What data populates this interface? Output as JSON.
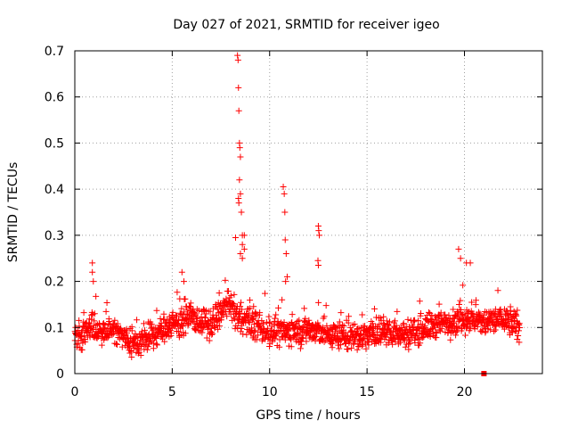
{
  "chart_data": {
    "type": "scatter",
    "title": "Day 027 of 2021, SRMTID for receiver igeo",
    "xlabel": "GPS time / hours",
    "ylabel": "SRMTID / TECUs",
    "xlim": [
      0,
      24
    ],
    "ylim": [
      0,
      0.7
    ],
    "xticks": [
      0,
      5,
      10,
      15,
      20
    ],
    "xtick_labels": [
      "0",
      "5",
      "10",
      "15",
      "20"
    ],
    "yticks": [
      0,
      0.1,
      0.2,
      0.3,
      0.4,
      0.5,
      0.6,
      0.7
    ],
    "ytick_labels": [
      "0",
      "0.1",
      "0.2",
      "0.3",
      "0.4",
      "0.5",
      "0.6",
      "0.7"
    ],
    "grid": true,
    "marker": "+",
    "color": "#ff0000",
    "series": [
      {
        "name": "SRMTID",
        "background": {
          "x_start": 0.0,
          "x_end": 22.85,
          "count": 1600,
          "base_profile": [
            [
              0.0,
              0.085
            ],
            [
              1.0,
              0.095
            ],
            [
              2.0,
              0.095
            ],
            [
              3.0,
              0.065
            ],
            [
              4.0,
              0.08
            ],
            [
              5.0,
              0.11
            ],
            [
              6.0,
              0.12
            ],
            [
              7.0,
              0.105
            ],
            [
              7.8,
              0.15
            ],
            [
              8.5,
              0.12
            ],
            [
              9.0,
              0.11
            ],
            [
              10.0,
              0.09
            ],
            [
              11.0,
              0.09
            ],
            [
              12.0,
              0.095
            ],
            [
              13.0,
              0.085
            ],
            [
              14.0,
              0.08
            ],
            [
              15.0,
              0.085
            ],
            [
              16.0,
              0.09
            ],
            [
              17.0,
              0.085
            ],
            [
              18.0,
              0.1
            ],
            [
              19.0,
              0.11
            ],
            [
              20.0,
              0.12
            ],
            [
              21.0,
              0.11
            ],
            [
              22.0,
              0.12
            ],
            [
              22.85,
              0.1
            ]
          ],
          "spread": 0.035
        },
        "points": [
          [
            0.9,
            0.24
          ],
          [
            0.9,
            0.22
          ],
          [
            0.95,
            0.2
          ],
          [
            5.5,
            0.22
          ],
          [
            5.6,
            0.2
          ],
          [
            8.35,
            0.69
          ],
          [
            8.38,
            0.68
          ],
          [
            8.4,
            0.62
          ],
          [
            8.42,
            0.57
          ],
          [
            8.45,
            0.5
          ],
          [
            8.47,
            0.49
          ],
          [
            8.5,
            0.47
          ],
          [
            8.45,
            0.42
          ],
          [
            8.5,
            0.39
          ],
          [
            8.4,
            0.38
          ],
          [
            8.42,
            0.37
          ],
          [
            8.55,
            0.35
          ],
          [
            8.6,
            0.3
          ],
          [
            8.7,
            0.3
          ],
          [
            8.25,
            0.295
          ],
          [
            8.6,
            0.28
          ],
          [
            8.7,
            0.27
          ],
          [
            8.5,
            0.26
          ],
          [
            8.6,
            0.25
          ],
          [
            10.7,
            0.405
          ],
          [
            10.75,
            0.39
          ],
          [
            10.78,
            0.35
          ],
          [
            10.8,
            0.29
          ],
          [
            10.85,
            0.26
          ],
          [
            10.9,
            0.21
          ],
          [
            10.82,
            0.2
          ],
          [
            12.5,
            0.32
          ],
          [
            12.52,
            0.31
          ],
          [
            12.55,
            0.3
          ],
          [
            12.48,
            0.245
          ],
          [
            12.5,
            0.235
          ],
          [
            19.7,
            0.27
          ],
          [
            19.8,
            0.25
          ],
          [
            20.1,
            0.24
          ],
          [
            20.3,
            0.24
          ]
        ]
      }
    ],
    "extra_marker": {
      "x": 21.0,
      "y": 0.0,
      "shape": "square"
    }
  }
}
